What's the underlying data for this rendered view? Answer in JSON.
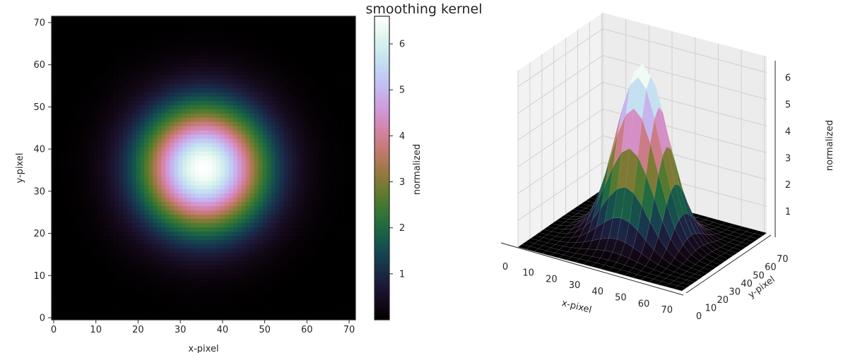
{
  "title": "smoothing kernel",
  "chart_data": [
    {
      "type": "heatmap",
      "title": "",
      "xlabel": "x-pixel",
      "ylabel": "y-pixel",
      "xlim": [
        -0.5,
        71.5
      ],
      "ylim": [
        -0.5,
        71.5
      ],
      "xticks": [
        0,
        10,
        20,
        30,
        40,
        50,
        60,
        70
      ],
      "yticks": [
        0,
        10,
        20,
        30,
        40,
        50,
        60,
        70
      ],
      "grid_size": 72,
      "kernel": {
        "center_x": 35.5,
        "center_y": 35.5,
        "sigma": 10,
        "peak": 6.6
      },
      "colormap": "cubehelix",
      "colorbar": {
        "label": "normalized",
        "range": [
          0,
          6.6
        ],
        "ticks": [
          1,
          2,
          3,
          4,
          5,
          6
        ]
      }
    },
    {
      "type": "surface3d",
      "title": "",
      "xlabel": "x-pixel",
      "ylabel": "y-pixel",
      "zlabel": "normalized",
      "xticks": [
        0,
        10,
        20,
        30,
        40,
        50,
        60,
        70
      ],
      "yticks": [
        0,
        10,
        20,
        30,
        40,
        50,
        60,
        70
      ],
      "zticks": [
        1,
        2,
        3,
        4,
        5,
        6
      ],
      "zlim": [
        0,
        6.6
      ],
      "colormap": "cubehelix",
      "grid": true
    }
  ]
}
